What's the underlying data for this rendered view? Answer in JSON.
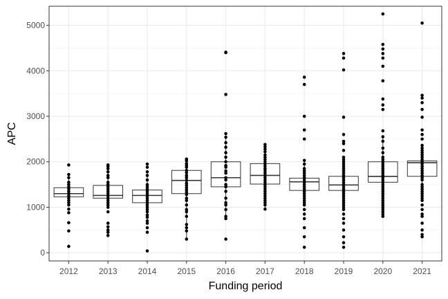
{
  "chart_data": {
    "type": "box",
    "xlabel": "Funding period",
    "ylabel": "APC",
    "ylim": [
      -180,
      5420
    ],
    "yticks": [
      0,
      1000,
      2000,
      3000,
      4000,
      5000
    ],
    "grid": true,
    "categories": [
      "2012",
      "2013",
      "2014",
      "2015",
      "2016",
      "2017",
      "2018",
      "2019",
      "2020",
      "2021"
    ],
    "boxes": [
      {
        "category": "2012",
        "whisker_low": 1060,
        "q1": 1230,
        "median": 1300,
        "q3": 1430,
        "whisker_high": 1700
      },
      {
        "category": "2013",
        "whisker_low": 1000,
        "q1": 1200,
        "median": 1260,
        "q3": 1480,
        "whisker_high": 1900
      },
      {
        "category": "2014",
        "whisker_low": 700,
        "q1": 1100,
        "median": 1260,
        "q3": 1380,
        "whisker_high": 1780
      },
      {
        "category": "2015",
        "whisker_low": 300,
        "q1": 1300,
        "median": 1590,
        "q3": 1810,
        "whisker_high": 2070
      },
      {
        "category": "2016",
        "whisker_low": 750,
        "q1": 1450,
        "median": 1650,
        "q3": 2000,
        "whisker_high": 2620
      },
      {
        "category": "2017",
        "whisker_low": 960,
        "q1": 1510,
        "median": 1700,
        "q3": 1960,
        "whisker_high": 2380
      },
      {
        "category": "2018",
        "whisker_low": 1050,
        "q1": 1370,
        "median": 1560,
        "q3": 1640,
        "whisker_high": 2030
      },
      {
        "category": "2019",
        "whisker_low": 950,
        "q1": 1370,
        "median": 1490,
        "q3": 1680,
        "whisker_high": 2050
      },
      {
        "category": "2020",
        "whisker_low": 800,
        "q1": 1550,
        "median": 1680,
        "q3": 2000,
        "whisker_high": 2550
      },
      {
        "category": "2021",
        "whisker_low": 1500,
        "q1": 1680,
        "median": 1980,
        "q3": 2020,
        "whisker_high": 2360
      }
    ],
    "points": [
      {
        "category": "2012",
        "y": [
          1930,
          1720,
          1650,
          1550,
          1500,
          1450,
          1400,
          1350,
          1300,
          1250,
          1200,
          1150,
          1100,
          1050,
          960,
          880,
          660,
          480,
          140
        ]
      },
      {
        "category": "2013",
        "y": [
          1930,
          1900,
          1850,
          1780,
          1700,
          1650,
          1550,
          1500,
          1450,
          1400,
          1350,
          1300,
          1250,
          1200,
          1150,
          1100,
          1050,
          1000,
          900,
          650,
          570,
          500,
          450,
          380
        ]
      },
      {
        "category": "2014",
        "y": [
          1950,
          1880,
          1780,
          1700,
          1600,
          1500,
          1450,
          1400,
          1350,
          1300,
          1250,
          1200,
          1150,
          1100,
          1050,
          1000,
          950,
          900,
          830,
          780,
          700,
          650,
          550,
          450,
          40
        ]
      },
      {
        "category": "2015",
        "y": [
          2060,
          2020,
          1960,
          1920,
          1880,
          1810,
          1760,
          1700,
          1650,
          1590,
          1530,
          1480,
          1430,
          1380,
          1330,
          1280,
          1200,
          1150,
          1050,
          950,
          900,
          800,
          620,
          550,
          480,
          300
        ]
      },
      {
        "category": "2016",
        "y": [
          4410,
          4400,
          3480,
          2620,
          2540,
          2420,
          2320,
          2200,
          2100,
          2000,
          1920,
          1880,
          1800,
          1750,
          1650,
          1600,
          1500,
          1450,
          1350,
          1200,
          1100,
          1050,
          950,
          800,
          750,
          300
        ]
      },
      {
        "category": "2017",
        "y": [
          2380,
          2330,
          2280,
          2220,
          2150,
          2100,
          2050,
          2000,
          1950,
          1900,
          1850,
          1800,
          1750,
          1700,
          1650,
          1600,
          1550,
          1500,
          1450,
          1400,
          1350,
          1300,
          1250,
          1200,
          1150,
          1100,
          1050,
          960
        ]
      },
      {
        "category": "2018",
        "y": [
          3860,
          3700,
          3000,
          2700,
          2500,
          2030,
          1950,
          1850,
          1800,
          1750,
          1700,
          1650,
          1600,
          1550,
          1500,
          1450,
          1400,
          1350,
          1300,
          1250,
          1200,
          1150,
          1100,
          1050,
          950,
          850,
          750,
          550,
          350,
          120
        ]
      },
      {
        "category": "2019",
        "y": [
          4380,
          4280,
          4020,
          2980,
          2600,
          2450,
          2400,
          2250,
          2100,
          2050,
          2000,
          1950,
          1900,
          1850,
          1800,
          1750,
          1700,
          1650,
          1600,
          1550,
          1500,
          1450,
          1400,
          1350,
          1300,
          1250,
          1200,
          1150,
          1100,
          1050,
          1000,
          950,
          850,
          750,
          650,
          500,
          350,
          220,
          120
        ]
      },
      {
        "category": "2020",
        "y": [
          5250,
          4580,
          4480,
          4380,
          4280,
          4100,
          3780,
          3380,
          3250,
          3150,
          2680,
          2550,
          2450,
          2300,
          2200,
          2100,
          2050,
          2000,
          1950,
          1900,
          1850,
          1800,
          1750,
          1700,
          1650,
          1600,
          1550,
          1500,
          1450,
          1400,
          1350,
          1300,
          1250,
          1200,
          1150,
          1100,
          1050,
          1000,
          950,
          900,
          850,
          800
        ]
      },
      {
        "category": "2021",
        "y": [
          5050,
          3460,
          3400,
          3300,
          3150,
          2980,
          2700,
          2600,
          2500,
          2360,
          2300,
          2250,
          2200,
          2150,
          2100,
          2050,
          2000,
          1950,
          1900,
          1850,
          1800,
          1750,
          1700,
          1650,
          1600,
          1500,
          1450,
          1400,
          1350,
          1300,
          1250,
          1200,
          1150,
          1050,
          950,
          850,
          800,
          650,
          500,
          400,
          350
        ]
      }
    ]
  }
}
